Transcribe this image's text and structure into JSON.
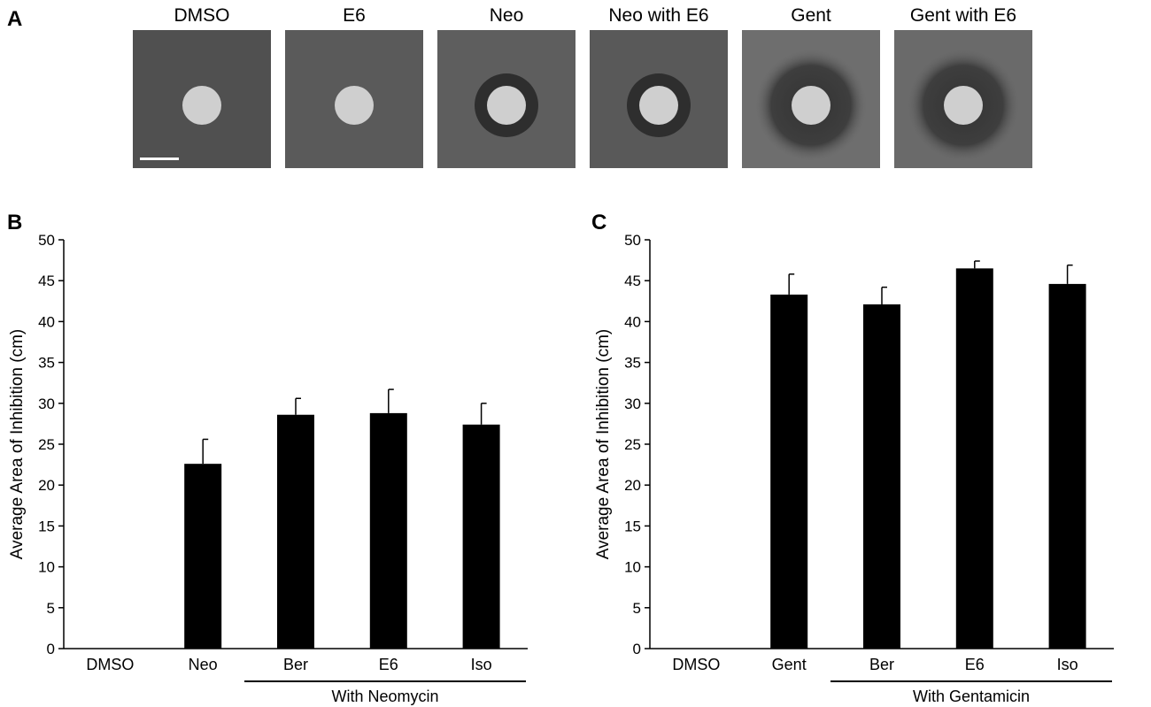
{
  "panel_a": {
    "letter": "A",
    "plates": [
      {
        "label": "DMSO",
        "zone": "none",
        "shade": "#505050"
      },
      {
        "label": "E6",
        "zone": "none",
        "shade": "#5a5a5a"
      },
      {
        "label": "Neo",
        "zone": "small",
        "shade": "#5e5e5e"
      },
      {
        "label": "Neo with E6",
        "zone": "small",
        "shade": "#595959"
      },
      {
        "label": "Gent",
        "zone": "large",
        "shade": "#6e6e6e"
      },
      {
        "label": "Gent with E6",
        "zone": "large",
        "shade": "#6a6a6a"
      }
    ],
    "scale_bar": "scale-bar"
  },
  "chart_data": [
    {
      "panel_letter": "B",
      "type": "bar",
      "ylabel": "Average Area of Inhibition (cm)",
      "ylim": [
        0,
        50
      ],
      "yticks": [
        "0",
        "5",
        "10",
        "15",
        "20",
        "25",
        "30",
        "35",
        "40",
        "45",
        "50"
      ],
      "categories": [
        "DMSO",
        "Neo",
        "Ber",
        "E6",
        "Iso"
      ],
      "values": [
        0,
        22.6,
        28.6,
        28.8,
        27.4
      ],
      "errors": [
        0,
        3.0,
        2.0,
        2.9,
        2.6
      ],
      "group_label": "With Neomycin",
      "bar_color": "#000000"
    },
    {
      "panel_letter": "C",
      "type": "bar",
      "ylabel": "Average Area of Inhibition (cm)",
      "ylim": [
        0,
        50
      ],
      "yticks": [
        "0",
        "5",
        "10",
        "15",
        "20",
        "25",
        "30",
        "35",
        "40",
        "45",
        "50"
      ],
      "categories": [
        "DMSO",
        "Gent",
        "Ber",
        "E6",
        "Iso"
      ],
      "values": [
        0,
        43.3,
        42.1,
        46.5,
        44.6
      ],
      "errors": [
        0,
        2.5,
        2.1,
        0.9,
        2.3
      ],
      "group_label": "With Gentamicin",
      "bar_color": "#000000"
    }
  ]
}
